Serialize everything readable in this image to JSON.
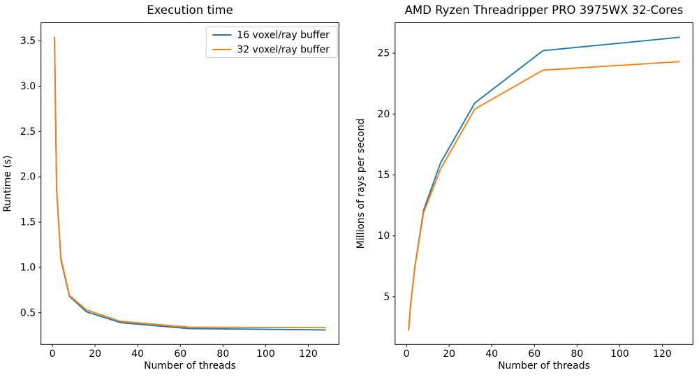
{
  "figure": {
    "background": "#ffffff",
    "text_color": "#000000",
    "axis_color": "#000000",
    "legend_border_color": "#cccccc"
  },
  "chart_data": [
    {
      "id": "execution-time",
      "type": "line",
      "title": "Execution time",
      "xlabel": "Number of threads",
      "ylabel": "Runtime (s)",
      "x": [
        1,
        2,
        4,
        8,
        16,
        32,
        64,
        128
      ],
      "series": [
        {
          "name": "16 voxel/ray buffer",
          "color": "#1f77b4",
          "values": [
            3.5,
            1.85,
            1.08,
            0.68,
            0.51,
            0.39,
            0.325,
            0.31
          ]
        },
        {
          "name": "32 voxel/ray buffer",
          "color": "#ff7f0e",
          "values": [
            3.54,
            1.87,
            1.1,
            0.69,
            0.53,
            0.405,
            0.34,
            0.335
          ]
        }
      ],
      "xlim": [
        -5.35,
        134.35
      ],
      "ylim": [
        0.149,
        3.701
      ],
      "xticks": {
        "values": [
          0,
          20,
          40,
          60,
          80,
          100,
          120
        ],
        "labels": [
          "0",
          "20",
          "40",
          "60",
          "80",
          "100",
          "120"
        ]
      },
      "yticks": {
        "values": [
          0.5,
          1.0,
          1.5,
          2.0,
          2.5,
          3.0,
          3.5
        ],
        "labels": [
          "0.5",
          "1.0",
          "1.5",
          "2.0",
          "2.5",
          "3.0",
          "3.5"
        ]
      },
      "legend": {
        "visible": true,
        "position": "upper right",
        "entries": [
          "16 voxel/ray buffer",
          "32 voxel/ray buffer"
        ]
      },
      "grid": false
    },
    {
      "id": "rays-per-second",
      "type": "line",
      "title": "AMD Ryzen Threadripper PRO 3975WX 32-Cores",
      "xlabel": "Number of threads",
      "ylabel": "Millions of rays per second",
      "x": [
        1,
        2,
        4,
        8,
        16,
        32,
        64,
        128
      ],
      "series": [
        {
          "name": "16 voxel/ray buffer",
          "color": "#1f77b4",
          "values": [
            2.3,
            4.45,
            7.55,
            12.1,
            16.0,
            20.9,
            25.2,
            26.3
          ]
        },
        {
          "name": "32 voxel/ray buffer",
          "color": "#ff7f0e",
          "values": [
            2.28,
            4.4,
            7.5,
            11.9,
            15.5,
            20.4,
            23.6,
            24.3
          ]
        }
      ],
      "xlim": [
        -5.35,
        134.35
      ],
      "ylim": [
        1.08,
        27.5
      ],
      "xticks": {
        "values": [
          0,
          20,
          40,
          60,
          80,
          100,
          120
        ],
        "labels": [
          "0",
          "20",
          "40",
          "60",
          "80",
          "100",
          "120"
        ]
      },
      "yticks": {
        "values": [
          5,
          10,
          15,
          20,
          25
        ],
        "labels": [
          "5",
          "10",
          "15",
          "20",
          "25"
        ]
      },
      "legend": {
        "visible": false
      },
      "grid": false
    }
  ]
}
